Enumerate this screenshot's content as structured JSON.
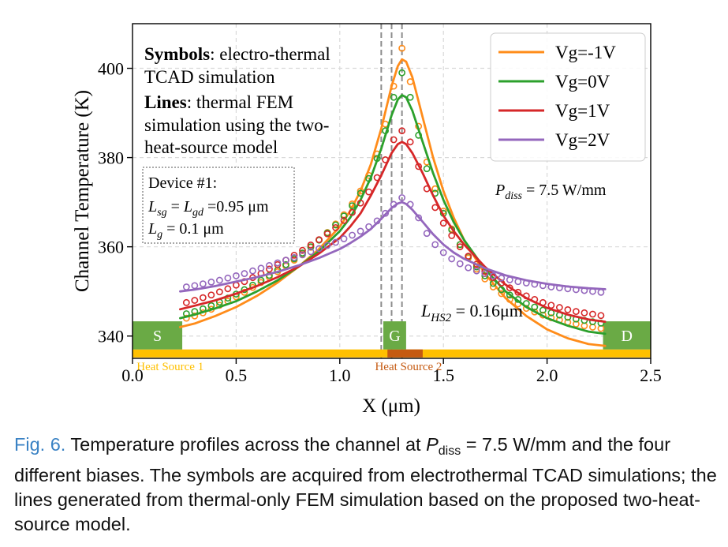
{
  "chart_data": {
    "type": "line",
    "xlabel": "X (μm)",
    "ylabel": "Channel Temperature (K)",
    "xlim": [
      0.0,
      2.5
    ],
    "ylim": [
      335,
      410
    ],
    "xticks": [
      0.0,
      0.5,
      1.0,
      1.5,
      2.0,
      2.5
    ],
    "xtick_labels": [
      "0.0",
      "0.5",
      "1.0",
      "1.5",
      "2.0",
      "2.5"
    ],
    "yticks": [
      340,
      360,
      380,
      400
    ],
    "ytick_labels": [
      "340",
      "360",
      "380",
      "400"
    ],
    "grid": true,
    "legend_position": "top-right",
    "gate_lines_x": [
      1.2,
      1.25,
      1.3
    ],
    "series": [
      {
        "name": "Vg=-1V",
        "color": "#ff8c1a",
        "line_x": [
          0.23,
          0.3,
          0.4,
          0.5,
          0.6,
          0.7,
          0.8,
          0.9,
          1.0,
          1.05,
          1.1,
          1.15,
          1.2,
          1.25,
          1.28,
          1.3,
          1.32,
          1.35,
          1.4,
          1.45,
          1.5,
          1.55,
          1.6,
          1.7,
          1.8,
          1.9,
          2.0,
          2.1,
          2.2,
          2.28
        ],
        "line_y": [
          342.0,
          342.8,
          344.5,
          346.5,
          349.0,
          352.0,
          355.5,
          359.5,
          364.5,
          368.0,
          372.5,
          378.5,
          386.5,
          396.0,
          400.5,
          402.0,
          401.5,
          398.0,
          389.0,
          380.0,
          372.5,
          366.5,
          361.5,
          354.0,
          348.5,
          344.5,
          341.5,
          339.5,
          338.2,
          337.8
        ],
        "symbol_x": [
          0.26,
          0.3,
          0.34,
          0.38,
          0.42,
          0.46,
          0.5,
          0.54,
          0.58,
          0.62,
          0.66,
          0.7,
          0.74,
          0.78,
          0.82,
          0.86,
          0.9,
          0.94,
          0.98,
          1.02,
          1.06,
          1.1,
          1.14,
          1.18,
          1.22,
          1.26,
          1.3,
          1.34,
          1.38,
          1.42,
          1.46,
          1.5,
          1.54,
          1.58,
          1.62,
          1.66,
          1.7,
          1.74,
          1.78,
          1.82,
          1.86,
          1.9,
          1.94,
          1.98,
          2.02,
          2.06,
          2.1,
          2.14,
          2.18,
          2.22,
          2.26
        ],
        "symbol_y": [
          344.0,
          344.5,
          345.2,
          346.0,
          346.9,
          347.8,
          348.8,
          349.8,
          350.9,
          352.0,
          353.2,
          354.4,
          355.7,
          357.0,
          358.4,
          359.9,
          361.5,
          363.2,
          365.1,
          367.2,
          369.6,
          372.5,
          376.0,
          380.8,
          387.5,
          396.0,
          404.5,
          397.0,
          387.0,
          379.0,
          373.0,
          368.0,
          364.0,
          360.5,
          357.5,
          355.0,
          352.8,
          351.0,
          349.5,
          348.2,
          347.2,
          346.2,
          345.4,
          344.7,
          344.1,
          343.6,
          343.1,
          342.7,
          342.3,
          342.0,
          341.7
        ]
      },
      {
        "name": "Vg=0V",
        "color": "#2ca02c",
        "line_x": [
          0.23,
          0.3,
          0.4,
          0.5,
          0.6,
          0.7,
          0.8,
          0.9,
          1.0,
          1.05,
          1.1,
          1.15,
          1.2,
          1.25,
          1.28,
          1.3,
          1.32,
          1.35,
          1.4,
          1.45,
          1.5,
          1.55,
          1.6,
          1.7,
          1.8,
          1.9,
          2.0,
          2.1,
          2.2,
          2.28
        ],
        "line_y": [
          344.0,
          344.8,
          346.2,
          347.8,
          350.0,
          352.5,
          355.5,
          359.0,
          363.5,
          366.5,
          370.5,
          375.5,
          382.0,
          389.5,
          393.0,
          394.0,
          393.5,
          390.5,
          383.5,
          376.5,
          370.5,
          365.5,
          361.5,
          355.0,
          350.0,
          346.5,
          344.0,
          342.3,
          341.0,
          340.5
        ],
        "symbol_x": [
          0.26,
          0.3,
          0.34,
          0.38,
          0.42,
          0.46,
          0.5,
          0.54,
          0.58,
          0.62,
          0.66,
          0.7,
          0.74,
          0.78,
          0.82,
          0.86,
          0.9,
          0.94,
          0.98,
          1.02,
          1.06,
          1.1,
          1.14,
          1.18,
          1.22,
          1.26,
          1.3,
          1.34,
          1.38,
          1.42,
          1.46,
          1.5,
          1.54,
          1.58,
          1.62,
          1.66,
          1.7,
          1.74,
          1.78,
          1.82,
          1.86,
          1.9,
          1.94,
          1.98,
          2.02,
          2.06,
          2.1,
          2.14,
          2.18,
          2.22,
          2.26
        ],
        "symbol_y": [
          345.0,
          345.5,
          346.1,
          346.8,
          347.6,
          348.5,
          349.4,
          350.4,
          351.4,
          352.5,
          353.6,
          354.8,
          356.0,
          357.3,
          358.6,
          360.0,
          361.5,
          363.1,
          364.9,
          366.9,
          369.2,
          372.0,
          375.3,
          379.8,
          386.0,
          393.5,
          399.0,
          393.5,
          385.0,
          377.5,
          372.0,
          367.5,
          363.8,
          360.5,
          357.8,
          355.5,
          353.5,
          351.8,
          350.4,
          349.2,
          348.2,
          347.3,
          346.5,
          345.8,
          345.2,
          344.7,
          344.2,
          343.8,
          343.5,
          343.2,
          342.9
        ]
      },
      {
        "name": "Vg=1V",
        "color": "#d62728",
        "line_x": [
          0.23,
          0.3,
          0.4,
          0.5,
          0.6,
          0.7,
          0.8,
          0.9,
          1.0,
          1.05,
          1.1,
          1.15,
          1.2,
          1.25,
          1.28,
          1.3,
          1.32,
          1.35,
          1.4,
          1.45,
          1.5,
          1.55,
          1.6,
          1.7,
          1.8,
          1.9,
          2.0,
          2.1,
          2.2,
          2.28
        ],
        "line_y": [
          346.0,
          346.8,
          348.0,
          349.5,
          351.2,
          353.2,
          355.5,
          358.5,
          362.0,
          364.5,
          367.5,
          371.5,
          376.0,
          381.0,
          383.0,
          383.5,
          383.0,
          381.0,
          376.5,
          371.5,
          367.0,
          363.5,
          360.5,
          355.5,
          351.5,
          348.5,
          346.3,
          344.8,
          343.7,
          343.2
        ],
        "symbol_x": [
          0.26,
          0.3,
          0.34,
          0.38,
          0.42,
          0.46,
          0.5,
          0.54,
          0.58,
          0.62,
          0.66,
          0.7,
          0.74,
          0.78,
          0.82,
          0.86,
          0.9,
          0.94,
          0.98,
          1.02,
          1.06,
          1.1,
          1.14,
          1.18,
          1.22,
          1.26,
          1.3,
          1.34,
          1.38,
          1.42,
          1.46,
          1.5,
          1.54,
          1.58,
          1.62,
          1.66,
          1.7,
          1.74,
          1.78,
          1.82,
          1.86,
          1.9,
          1.94,
          1.98,
          2.02,
          2.06,
          2.1,
          2.14,
          2.18,
          2.22,
          2.26
        ],
        "symbol_y": [
          347.5,
          348.0,
          348.6,
          349.2,
          349.9,
          350.6,
          351.4,
          352.2,
          353.1,
          354.0,
          355.0,
          356.0,
          357.0,
          358.1,
          359.2,
          360.4,
          361.6,
          362.9,
          364.3,
          365.9,
          367.7,
          369.8,
          372.3,
          375.5,
          379.5,
          384.0,
          386.0,
          383.5,
          378.0,
          373.0,
          368.8,
          365.3,
          362.5,
          360.0,
          357.9,
          356.1,
          354.5,
          353.1,
          351.9,
          350.8,
          349.8,
          349.0,
          348.2,
          347.5,
          346.9,
          346.4,
          345.9,
          345.5,
          345.2,
          344.9,
          344.6
        ]
      },
      {
        "name": "Vg=2V",
        "color": "#9467bd",
        "line_x": [
          0.23,
          0.3,
          0.4,
          0.5,
          0.6,
          0.7,
          0.8,
          0.9,
          1.0,
          1.05,
          1.1,
          1.15,
          1.2,
          1.25,
          1.28,
          1.3,
          1.32,
          1.35,
          1.4,
          1.45,
          1.5,
          1.55,
          1.6,
          1.7,
          1.8,
          1.9,
          2.0,
          2.1,
          2.2,
          2.28
        ],
        "line_y": [
          350.0,
          350.4,
          351.2,
          352.2,
          353.2,
          354.4,
          355.8,
          357.5,
          359.5,
          360.8,
          362.3,
          364.0,
          366.3,
          368.7,
          369.7,
          370.0,
          369.6,
          368.3,
          365.6,
          362.8,
          360.5,
          358.7,
          357.3,
          355.2,
          353.6,
          352.5,
          351.7,
          351.1,
          350.7,
          350.5
        ],
        "symbol_x": [
          0.26,
          0.3,
          0.34,
          0.38,
          0.42,
          0.46,
          0.5,
          0.54,
          0.58,
          0.62,
          0.66,
          0.7,
          0.74,
          0.78,
          0.82,
          0.86,
          0.9,
          0.94,
          0.98,
          1.02,
          1.06,
          1.1,
          1.14,
          1.18,
          1.22,
          1.26,
          1.3,
          1.34,
          1.38,
          1.42,
          1.46,
          1.5,
          1.54,
          1.58,
          1.62,
          1.66,
          1.7,
          1.74,
          1.78,
          1.82,
          1.86,
          1.9,
          1.94,
          1.98,
          2.02,
          2.06,
          2.1,
          2.14,
          2.18,
          2.22,
          2.26
        ],
        "symbol_y": [
          351.0,
          351.3,
          351.7,
          352.1,
          352.5,
          353.0,
          353.5,
          354.0,
          354.6,
          355.2,
          355.8,
          356.4,
          357.0,
          357.6,
          358.2,
          358.9,
          359.6,
          360.3,
          361.0,
          361.8,
          362.6,
          363.5,
          364.5,
          365.8,
          367.5,
          369.5,
          371.0,
          369.5,
          366.5,
          363.0,
          360.5,
          358.7,
          357.3,
          356.2,
          355.3,
          354.6,
          354.0,
          353.5,
          353.0,
          352.6,
          352.2,
          351.9,
          351.6,
          351.3,
          351.0,
          350.8,
          350.6,
          350.4,
          350.2,
          350.0,
          349.8
        ]
      }
    ],
    "electrodes": [
      {
        "label": "S",
        "x_start": 0.0,
        "x_end": 0.24
      },
      {
        "label": "G",
        "x_start": 1.21,
        "x_end": 1.32
      },
      {
        "label": "D",
        "x_start": 2.27,
        "x_end": 2.5
      }
    ],
    "heat_source_1": {
      "label": "Heat Source 1",
      "x_start": 0.0,
      "x_end": 2.5
    },
    "heat_source_2": {
      "label": "Heat Source 2",
      "x_start": 1.23,
      "x_end": 1.4
    }
  },
  "annotations": {
    "symbols_bold": "Symbols",
    "symbols_line1_rest": ": electro-thermal",
    "symbols_line2": "TCAD simulation",
    "lines_bold": "Lines",
    "lines_line1_rest": ": thermal FEM",
    "lines_line2": "simulation using the two-",
    "lines_line3": "heat-source model",
    "device_title": "Device #1:",
    "lsg_L": "L",
    "lsg_sub": "sg",
    "lsg_eq": " = ",
    "lgd_L": "L",
    "lgd_sub": "gd",
    "lgd_val": " =0.95 μm",
    "lg_L": "L",
    "lg_sub": "g",
    "lg_val": " = 0.1 μm",
    "pdiss_P": "P",
    "pdiss_sub": "diss",
    "pdiss_val": " = 7.5 W/mm",
    "lhs2_L": "L",
    "lhs2_sub": "HS2",
    "lhs2_val": " = 0.16μm"
  },
  "caption": {
    "fig_label": "Fig. 6.",
    "part1": " Temperature profiles across the channel at ",
    "p_var": "P",
    "p_sub": "diss",
    "part2": " = 7.5 W/mm and the four different biases. The symbols are acquired from electrothermal TCAD simulations; the lines generated from thermal-only FEM simulation based on the proposed two-heat-source model."
  },
  "colors": {
    "electrode": "#6aaa45",
    "heat_source_1": "#ffc000",
    "heat_source_2": "#c55a11",
    "gate_lines": "#8c8c8c",
    "grid": "#d9d9d9"
  }
}
